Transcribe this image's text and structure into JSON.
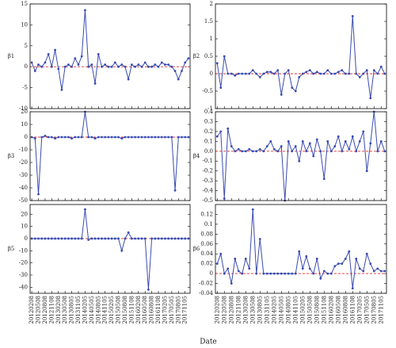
{
  "figure": {
    "xlabel": "Date"
  },
  "chart_data": [
    {
      "type": "line",
      "ylabel": "β1",
      "color": "#3a4bb0",
      "hline": 0,
      "hline_color": "#e0312c",
      "categories": [
        null,
        null,
        null,
        null,
        null,
        null,
        null,
        null,
        null,
        null,
        null,
        null,
        null,
        null,
        null,
        null,
        null,
        null,
        null,
        null,
        null,
        null,
        null,
        null,
        null,
        null,
        null,
        null,
        null,
        null,
        null,
        null,
        null,
        null,
        null,
        null,
        null,
        null,
        null,
        null,
        null,
        null,
        null,
        null,
        null,
        null,
        null,
        null
      ],
      "values": [
        1,
        -1,
        0.5,
        0,
        1,
        3,
        0,
        4,
        -0.5,
        -5.5,
        0,
        0.5,
        0,
        2,
        0.5,
        2.5,
        13.5,
        0,
        0.5,
        -4,
        3,
        0,
        0.5,
        0,
        0,
        1,
        0,
        0.5,
        0,
        -3,
        0.5,
        0,
        0.5,
        0,
        1,
        0,
        0,
        0.5,
        0,
        1,
        0.5,
        0.5,
        0,
        -1,
        -3,
        -1,
        1,
        2
      ],
      "ylim": [
        -10,
        15
      ],
      "yticks": [
        -10,
        -5,
        0,
        5,
        10,
        15
      ]
    },
    {
      "type": "line",
      "ylabel": "β2",
      "color": "#3a4bb0",
      "hline": 0,
      "hline_color": "#e0312c",
      "categories": [
        null,
        null,
        null,
        null,
        null,
        null,
        null,
        null,
        null,
        null,
        null,
        null,
        null,
        null,
        null,
        null,
        null,
        null,
        null,
        null,
        null,
        null,
        null,
        null,
        null,
        null,
        null,
        null,
        null,
        null,
        null,
        null,
        null,
        null,
        null,
        null,
        null,
        null,
        null,
        null,
        null,
        null,
        null,
        null,
        null,
        null,
        null,
        null
      ],
      "values": [
        0.3,
        -0.4,
        0.5,
        0,
        0,
        -0.05,
        0,
        0,
        0,
        0,
        0.1,
        0,
        -0.1,
        0,
        0.05,
        0.05,
        0,
        0.1,
        -0.6,
        0,
        0.1,
        -0.4,
        -0.5,
        -0.1,
        0,
        0.05,
        0.1,
        0,
        0.05,
        0,
        0,
        0.1,
        0,
        0,
        0.05,
        0.1,
        0,
        0,
        1.65,
        0,
        -0.1,
        0,
        0.1,
        -0.7,
        0.1,
        0,
        0.2,
        0
      ],
      "ylim": [
        -1,
        2
      ],
      "yticks": [
        -1,
        -0.5,
        0,
        0.5,
        1,
        1.5,
        2
      ]
    },
    {
      "type": "line",
      "ylabel": "β3",
      "color": "#3a4bb0",
      "hline": 0,
      "hline_color": "#e0312c",
      "categories": [
        null,
        null,
        null,
        null,
        null,
        null,
        null,
        null,
        null,
        null,
        null,
        null,
        null,
        null,
        null,
        null,
        null,
        null,
        null,
        null,
        null,
        null,
        null,
        null,
        null,
        null,
        null,
        null,
        null,
        null,
        null,
        null,
        null,
        null,
        null,
        null,
        null,
        null,
        null,
        null,
        null,
        null,
        null,
        null,
        null,
        null,
        null,
        null
      ],
      "values": [
        0,
        -1,
        -45,
        0,
        1,
        0,
        0,
        -1,
        0,
        0,
        0,
        0,
        -1,
        0,
        0,
        0,
        20,
        0,
        0,
        -1,
        0,
        0,
        0,
        0,
        0,
        0,
        0,
        -1,
        0,
        0,
        0,
        0,
        0,
        0,
        0,
        0,
        0,
        0,
        0,
        0,
        0,
        0,
        0,
        -42,
        0,
        0,
        0,
        0
      ],
      "ylim": [
        -50,
        20
      ],
      "yticks": [
        -50,
        -40,
        -30,
        -20,
        -10,
        0,
        10,
        20
      ]
    },
    {
      "type": "line",
      "ylabel": "β4",
      "color": "#3a4bb0",
      "hline": 0,
      "hline_color": "#e0312c",
      "categories": [
        null,
        null,
        null,
        null,
        null,
        null,
        null,
        null,
        null,
        null,
        null,
        null,
        null,
        null,
        null,
        null,
        null,
        null,
        null,
        null,
        null,
        null,
        null,
        null,
        null,
        null,
        null,
        null,
        null,
        null,
        null,
        null,
        null,
        null,
        null,
        null,
        null,
        null,
        null,
        null,
        null,
        null,
        null,
        null,
        null,
        null,
        null,
        null
      ],
      "values": [
        0.15,
        0.2,
        -0.48,
        0.23,
        0.05,
        0,
        0.02,
        0,
        0,
        0.02,
        0,
        0,
        0.02,
        0,
        0.05,
        0.1,
        0.02,
        0,
        0.05,
        -0.5,
        0.1,
        0,
        0.05,
        -0.1,
        0.1,
        0,
        0.08,
        -0.05,
        0.12,
        0,
        -0.28,
        0.1,
        0,
        0.05,
        0.15,
        0,
        0.1,
        0.02,
        0.15,
        0,
        0.1,
        0.2,
        -0.2,
        0.08,
        0.4,
        0,
        0.1,
        0
      ],
      "ylim": [
        -0.5,
        0.4
      ],
      "yticks": [
        -0.5,
        -0.4,
        -0.3,
        -0.2,
        -0.1,
        {
          "value": 0,
          "label": "0.0"
        },
        0.1,
        0.2,
        0.3,
        0.4
      ]
    },
    {
      "type": "line",
      "ylabel": "β5",
      "color": "#3a4bb0",
      "hline": 0,
      "hline_color": "#e0312c",
      "categories": [
        "20120208",
        null,
        "20120508",
        null,
        "20120808",
        null,
        "20121108",
        null,
        "20130208",
        null,
        "20130508",
        null,
        "20130805",
        null,
        "20131105",
        null,
        "20140205",
        null,
        "20140505",
        null,
        "20140805",
        null,
        "20141105",
        null,
        "20150205",
        null,
        "20150508",
        null,
        "20150808",
        null,
        "20151108",
        null,
        "20160208",
        null,
        "20160508",
        null,
        "20160808",
        null,
        "20161108",
        null,
        "20170205",
        null,
        "20170505",
        null,
        "20170805",
        null,
        "20171105",
        null
      ],
      "values": [
        0,
        0,
        0,
        0,
        0,
        0,
        0,
        0,
        0,
        0,
        0,
        0,
        0,
        0,
        0,
        0,
        24,
        -1,
        0,
        0,
        0,
        0,
        0,
        0,
        0,
        0,
        0,
        -10,
        0,
        5,
        0,
        0,
        0,
        0,
        0,
        -42,
        0,
        0,
        0,
        0,
        0,
        0,
        0,
        0,
        0,
        0,
        0,
        0
      ],
      "ylim": [
        -45,
        28
      ],
      "yticks": [
        -40,
        -30,
        -20,
        -10,
        0,
        10,
        20
      ]
    },
    {
      "type": "line",
      "ylabel": "β6",
      "color": "#3a4bb0",
      "hline": 0,
      "hline_color": "#e0312c",
      "categories": [
        "20120208",
        null,
        "20120508",
        null,
        "20120808",
        null,
        "20121108",
        null,
        "20130208",
        null,
        "20130508",
        null,
        "20130805",
        null,
        "20131105",
        null,
        "20140205",
        null,
        "20140505",
        null,
        "20140805",
        null,
        "20141105",
        null,
        "20150205",
        null,
        "20150508",
        null,
        "20150808",
        null,
        "20151108",
        null,
        "20160208",
        null,
        "20160508",
        null,
        "20160808",
        null,
        "20161108",
        null,
        "20170205",
        null,
        "20170505",
        null,
        "20170805",
        null,
        "20171105",
        null
      ],
      "values": [
        0.02,
        0.04,
        0,
        0.01,
        -0.02,
        0.03,
        0.005,
        0,
        0.03,
        0.01,
        0.13,
        0,
        0.07,
        0,
        0,
        0,
        0,
        0,
        0,
        0,
        0,
        0,
        0,
        0.045,
        0.01,
        0.035,
        0.01,
        0,
        0.03,
        -0.01,
        0.005,
        0,
        0,
        0.015,
        0.02,
        0.02,
        0.03,
        0.045,
        -0.03,
        0.03,
        0.01,
        0.005,
        0.04,
        0.02,
        0.005,
        0.01,
        0.005,
        0.005
      ],
      "ylim": [
        -0.04,
        0.14
      ],
      "yticks": [
        -0.04,
        -0.02,
        0,
        0.02,
        0.04,
        0.06,
        0.08,
        0.1,
        0.12
      ]
    }
  ]
}
